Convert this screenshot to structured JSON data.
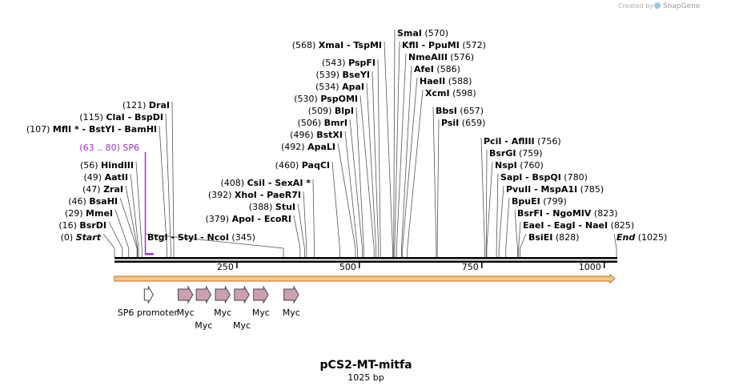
{
  "credit": {
    "created_by": "Created by",
    "brand": "SnapGene"
  },
  "map": {
    "name": "pCS2-MT-mitfa",
    "length_label": "1025 bp",
    "length_bp": 1025,
    "ticks": [
      {
        "value": 250,
        "label": "250"
      },
      {
        "value": 500,
        "label": "500"
      },
      {
        "value": 750,
        "label": "750"
      },
      {
        "value": 1000,
        "label": "1000"
      }
    ]
  },
  "sites": [
    {
      "pos": "(0)",
      "names": [
        "Start"
      ],
      "bp": 0,
      "special": true
    },
    {
      "pos": "(16)",
      "names": [
        "BsrDI"
      ],
      "bp": 16
    },
    {
      "pos": "(29)",
      "names": [
        "MmeI"
      ],
      "bp": 29
    },
    {
      "pos": "(46)",
      "names": [
        "BsaHI"
      ],
      "bp": 46
    },
    {
      "pos": "(47)",
      "names": [
        "ZraI"
      ],
      "bp": 47
    },
    {
      "pos": "(49)",
      "names": [
        "AatII"
      ],
      "bp": 49
    },
    {
      "pos": "(56)",
      "names": [
        "HindIII"
      ],
      "bp": 56
    },
    {
      "pos": "(107)",
      "names": [
        "MflI *",
        "BstYI",
        "BamHI"
      ],
      "bp": 107
    },
    {
      "pos": "(115)",
      "names": [
        "ClaI",
        "BspDI"
      ],
      "bp": 115
    },
    {
      "pos": "(121)",
      "names": [
        "DraI"
      ],
      "bp": 121
    },
    {
      "pos": "(345)",
      "names": [
        "BtgI",
        "StyI",
        "NcoI"
      ],
      "bp": 345
    },
    {
      "pos": "(379)",
      "names": [
        "ApoI",
        "EcoRI"
      ],
      "bp": 379
    },
    {
      "pos": "(388)",
      "names": [
        "StuI"
      ],
      "bp": 388
    },
    {
      "pos": "(392)",
      "names": [
        "XhoI",
        "PaeR7I"
      ],
      "bp": 392
    },
    {
      "pos": "(408)",
      "names": [
        "CsiI",
        "SexAI *"
      ],
      "bp": 408
    },
    {
      "pos": "(460)",
      "names": [
        "PaqCI"
      ],
      "bp": 460
    },
    {
      "pos": "(492)",
      "names": [
        "ApaLI"
      ],
      "bp": 492
    },
    {
      "pos": "(496)",
      "names": [
        "BstXI"
      ],
      "bp": 496
    },
    {
      "pos": "(506)",
      "names": [
        "BmrI"
      ],
      "bp": 506
    },
    {
      "pos": "(509)",
      "names": [
        "BlpI"
      ],
      "bp": 509
    },
    {
      "pos": "(530)",
      "names": [
        "PspOMI"
      ],
      "bp": 530
    },
    {
      "pos": "(534)",
      "names": [
        "ApaI"
      ],
      "bp": 534
    },
    {
      "pos": "(539)",
      "names": [
        "BseYI"
      ],
      "bp": 539
    },
    {
      "pos": "(543)",
      "names": [
        "PspFI"
      ],
      "bp": 543
    },
    {
      "pos": "(568)",
      "names": [
        "XmaI",
        "TspMI"
      ],
      "bp": 568
    },
    {
      "pos": "(570)",
      "names": [
        "SmaI"
      ],
      "bp": 570
    },
    {
      "pos": "(572)",
      "names": [
        "KflI",
        "PpuMI"
      ],
      "bp": 572
    },
    {
      "pos": "(576)",
      "names": [
        "NmeAIII"
      ],
      "bp": 576
    },
    {
      "pos": "(586)",
      "names": [
        "AfeI"
      ],
      "bp": 586
    },
    {
      "pos": "(588)",
      "names": [
        "HaeII"
      ],
      "bp": 588
    },
    {
      "pos": "(598)",
      "names": [
        "XcmI"
      ],
      "bp": 598
    },
    {
      "pos": "(657)",
      "names": [
        "BbsI"
      ],
      "bp": 657
    },
    {
      "pos": "(659)",
      "names": [
        "PsiI"
      ],
      "bp": 659
    },
    {
      "pos": "(756)",
      "names": [
        "PciI",
        "AflIII"
      ],
      "bp": 756
    },
    {
      "pos": "(759)",
      "names": [
        "BsrGI"
      ],
      "bp": 759
    },
    {
      "pos": "(760)",
      "names": [
        "NspI"
      ],
      "bp": 760
    },
    {
      "pos": "(780)",
      "names": [
        "SapI",
        "BspQI"
      ],
      "bp": 780
    },
    {
      "pos": "(785)",
      "names": [
        "PvuII",
        "MspA1I"
      ],
      "bp": 785
    },
    {
      "pos": "(799)",
      "names": [
        "BpuEI"
      ],
      "bp": 799
    },
    {
      "pos": "(823)",
      "names": [
        "BsrFI",
        "NgoMIV"
      ],
      "bp": 823
    },
    {
      "pos": "(825)",
      "names": [
        "EaeI",
        "EagI",
        "NaeI"
      ],
      "bp": 825
    },
    {
      "pos": "(828)",
      "names": [
        "BsiEI"
      ],
      "bp": 828
    },
    {
      "pos": "(1025)",
      "names": [
        "End"
      ],
      "bp": 1025,
      "special": true
    }
  ],
  "primer": {
    "label": "SP6",
    "range": "(63 .. 80)",
    "start_bp": 63,
    "end_bp": 80,
    "color": "#9b30d0"
  },
  "features": [
    {
      "label": "SP6 promoter",
      "type": "promoter",
      "start_bp": 61,
      "end_bp": 79
    },
    {
      "label": "Myc",
      "type": "tag",
      "start_bp": 130,
      "end_bp": 160
    },
    {
      "label": "Myc",
      "type": "tag",
      "start_bp": 167,
      "end_bp": 197
    },
    {
      "label": "Myc",
      "type": "tag",
      "start_bp": 206,
      "end_bp": 236
    },
    {
      "label": "Myc",
      "type": "tag",
      "start_bp": 245,
      "end_bp": 275
    },
    {
      "label": "Myc",
      "type": "tag",
      "start_bp": 284,
      "end_bp": 314
    },
    {
      "label": "Myc",
      "type": "tag",
      "start_bp": 346,
      "end_bp": 376
    }
  ],
  "colors": {
    "tag_fill": "#cc9fb4",
    "orf_fill": "#f5c98b",
    "orf_stroke": "#b8701e",
    "primer": "#9b30d0",
    "leader": "#555555"
  }
}
